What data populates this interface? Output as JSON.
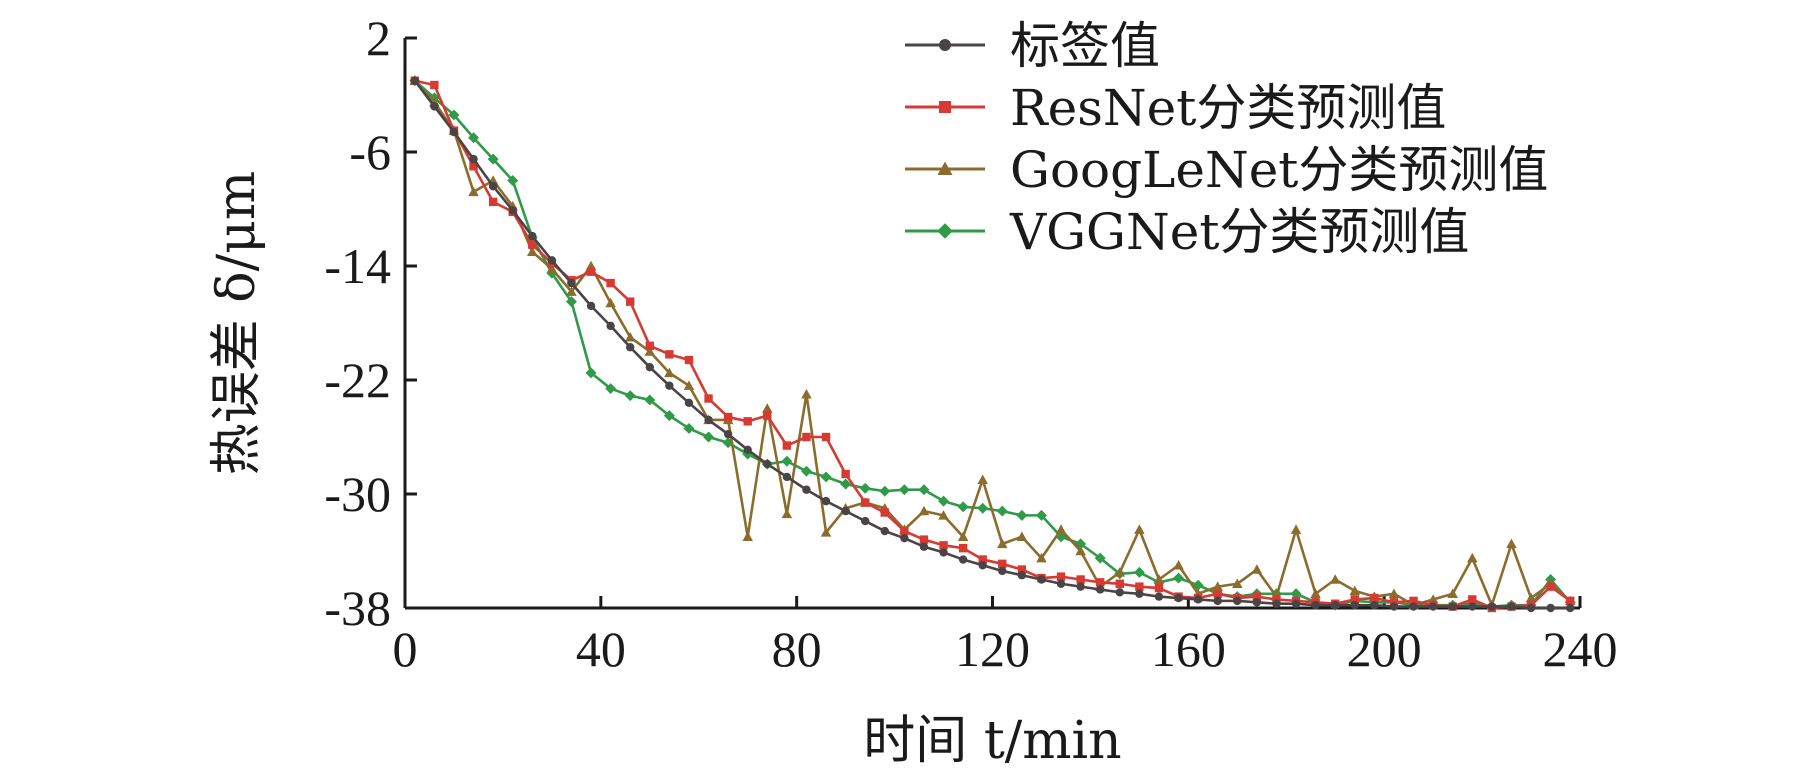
{
  "chart_data": {
    "type": "line",
    "xlabel": "时间 t/min",
    "ylabel": "热误差 δ/μm",
    "xlim": [
      0,
      240
    ],
    "ylim": [
      -38,
      2
    ],
    "xticks": [
      0,
      40,
      80,
      120,
      160,
      200,
      240
    ],
    "yticks": [
      2,
      -6,
      -14,
      -22,
      -30,
      -38
    ],
    "xtick_labels": [
      "0",
      "40",
      "80",
      "120",
      "160",
      "200",
      "240"
    ],
    "ytick_labels": [
      "2",
      "-6",
      "-14",
      "-22",
      "-30",
      "-38"
    ],
    "grid": false,
    "legend_position": "top-right",
    "x": [
      2,
      6,
      10,
      14,
      18,
      22,
      26,
      30,
      34,
      38,
      42,
      46,
      50,
      54,
      58,
      62,
      66,
      70,
      74,
      78,
      82,
      86,
      90,
      94,
      98,
      102,
      106,
      110,
      114,
      118,
      122,
      126,
      130,
      134,
      138,
      142,
      146,
      150,
      154,
      158,
      162,
      166,
      170,
      174,
      178,
      182,
      186,
      190,
      194,
      198,
      202,
      206,
      210,
      214,
      218,
      222,
      226,
      230,
      234,
      238
    ],
    "series": [
      {
        "name": "标签值",
        "marker": "circle",
        "color": "#4a4446",
        "values": [
          -1.0,
          -2.8,
          -4.6,
          -6.5,
          -8.4,
          -10.1,
          -11.9,
          -13.6,
          -15.2,
          -16.8,
          -18.2,
          -19.7,
          -21.1,
          -22.4,
          -23.6,
          -24.8,
          -25.8,
          -26.9,
          -27.9,
          -28.8,
          -29.7,
          -30.5,
          -31.2,
          -31.9,
          -32.6,
          -33.1,
          -33.7,
          -34.1,
          -34.6,
          -35.0,
          -35.4,
          -35.7,
          -36.0,
          -36.3,
          -36.5,
          -36.7,
          -36.9,
          -37.0,
          -37.2,
          -37.3,
          -37.4,
          -37.5,
          -37.5,
          -37.6,
          -37.7,
          -37.7,
          -37.8,
          -37.8,
          -37.8,
          -37.8,
          -37.9,
          -37.9,
          -37.9,
          -37.9,
          -37.9,
          -37.9,
          -37.9,
          -38.0,
          -38.0,
          -38.0
        ]
      },
      {
        "name": "ResNet分类预测值",
        "marker": "square",
        "color": "#d63a33",
        "values": [
          -1.0,
          -1.3,
          -4.5,
          -7.0,
          -9.5,
          -10.2,
          -12.5,
          -13.8,
          -15.0,
          -14.4,
          -15.2,
          -16.5,
          -19.6,
          -20.2,
          -20.6,
          -23.3,
          -24.6,
          -24.9,
          -24.5,
          -26.6,
          -26.0,
          -26.0,
          -28.6,
          -30.6,
          -31.3,
          -32.6,
          -33.2,
          -33.6,
          -33.8,
          -34.6,
          -34.9,
          -35.3,
          -35.9,
          -35.8,
          -36.0,
          -36.2,
          -36.3,
          -36.5,
          -36.6,
          -37.2,
          -37.3,
          -37.0,
          -37.3,
          -37.2,
          -37.4,
          -37.5,
          -37.6,
          -37.7,
          -37.4,
          -37.3,
          -37.6,
          -37.5,
          -37.8,
          -37.9,
          -37.4,
          -38.0,
          -37.9,
          -37.8,
          -36.5,
          -37.5
        ]
      },
      {
        "name": "GoogLeNet分类预测值",
        "marker": "triangle",
        "color": "#8a6d2c",
        "values": [
          -1.0,
          -2.5,
          -4.5,
          -8.8,
          -8.0,
          -9.8,
          -13.0,
          -14.2,
          -15.8,
          -14.0,
          -16.6,
          -19.0,
          -20.0,
          -21.5,
          -22.4,
          -24.8,
          -24.8,
          -33.0,
          -24.0,
          -31.4,
          -23.0,
          -32.7,
          -31.0,
          -30.6,
          -31.0,
          -32.5,
          -31.2,
          -31.5,
          -33.0,
          -29.0,
          -33.5,
          -33.0,
          -34.5,
          -32.5,
          -34.0,
          -36.5,
          -35.5,
          -32.5,
          -36.0,
          -35.0,
          -37.0,
          -36.5,
          -36.3,
          -35.3,
          -37.2,
          -32.5,
          -37.0,
          -36.0,
          -36.8,
          -37.2,
          -37.0,
          -37.8,
          -37.4,
          -37.0,
          -34.5,
          -37.8,
          -33.5,
          -37.3,
          -36.3,
          -37.5
        ]
      },
      {
        "name": "VGGNet分类预测值",
        "marker": "diamond",
        "color": "#2f9a47",
        "values": [
          -1.0,
          -2.2,
          -3.4,
          -5.0,
          -6.5,
          -8.0,
          -12.0,
          -14.5,
          -16.5,
          -21.5,
          -22.6,
          -23.1,
          -23.4,
          -24.5,
          -25.4,
          -26.0,
          -26.4,
          -27.2,
          -27.9,
          -27.7,
          -28.4,
          -28.8,
          -29.3,
          -29.6,
          -29.8,
          -29.7,
          -29.7,
          -30.5,
          -30.9,
          -31.0,
          -31.2,
          -31.5,
          -31.5,
          -33.0,
          -33.5,
          -34.5,
          -35.6,
          -35.5,
          -36.2,
          -35.9,
          -36.4,
          -37.0,
          -37.2,
          -37.0,
          -37.0,
          -37.0,
          -37.6,
          -37.8,
          -37.5,
          -37.6,
          -37.6,
          -37.8,
          -37.8,
          -37.8,
          -37.7,
          -37.9,
          -37.8,
          -37.8,
          -36.0,
          -37.6
        ]
      }
    ]
  }
}
